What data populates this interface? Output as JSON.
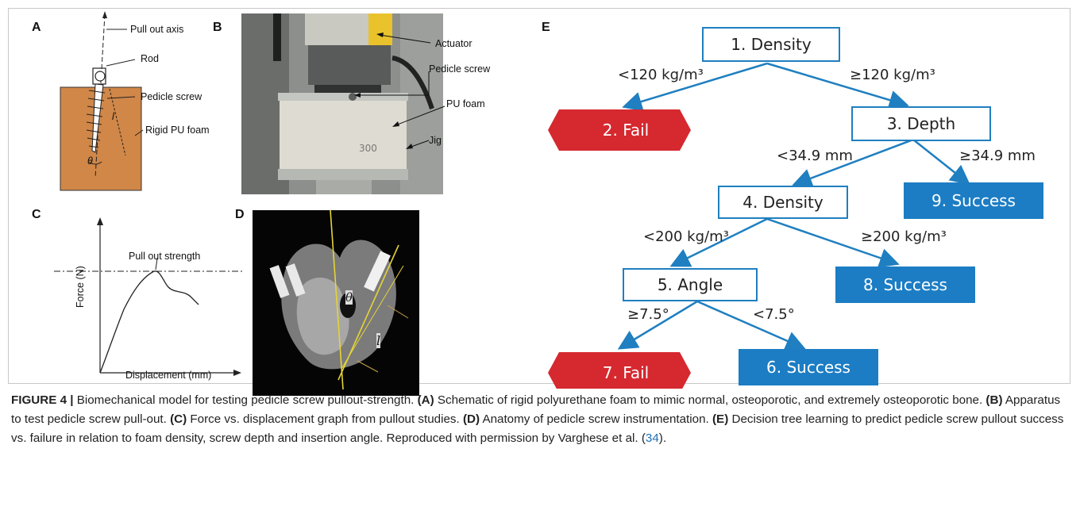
{
  "panels": {
    "a": {
      "letter": "A",
      "labels": {
        "pull_out_axis": "Pull out axis",
        "rod": "Rod",
        "pedicle_screw": "Pedicle screw",
        "rigid_pu_foam": "Rigid PU foam",
        "length_symbol": "l",
        "angle_symbol": "θ"
      },
      "colors": {
        "foam": "#d08748"
      }
    },
    "b": {
      "letter": "B",
      "labels": {
        "actuator": "Actuator",
        "pedicle_screw": "Pedicle screw",
        "pu_foam": "PU foam",
        "jig": "Jig",
        "foam_mark": "300"
      }
    },
    "c": {
      "letter": "C",
      "labels": {
        "pull_out_strength": "Pull out strength",
        "y_axis": "Force (N)",
        "x_axis": "Displacement (mm)"
      }
    },
    "d": {
      "letter": "D",
      "labels": {
        "angle_symbol": "θ",
        "length_symbol": "l"
      }
    },
    "e": {
      "letter": "E",
      "nodes": {
        "n1": "1. Density",
        "n2": "2. Fail",
        "n3": "3. Depth",
        "n4": "4. Density",
        "n5": "5. Angle",
        "n6": "6. Success",
        "n7": "7. Fail",
        "n8": "8. Success",
        "n9": "9. Success"
      },
      "edges": {
        "e1_2": "<120 kg/m³",
        "e1_3": "≥120 kg/m³",
        "e3_4": "<34.9 mm",
        "e3_9": "≥34.9 mm",
        "e4_5": "<200 kg/m³",
        "e4_8": "≥200 kg/m³",
        "e5_7": "≥7.5°",
        "e5_6": "<7.5°"
      },
      "colors": {
        "fail": "#d6282f",
        "success": "#1c7dc4",
        "edge": "#1f7fc0"
      }
    }
  },
  "caption": {
    "figure_label": "FIGURE 4 |",
    "title": " Biomechanical model for testing pedicle screw pullout-strength. ",
    "a_tag": "(A)",
    "a_text": " Schematic of rigid polyurethane foam to mimic normal, osteoporotic, and extremely osteoporotic bone. ",
    "b_tag": "(B)",
    "b_text": " Apparatus to test pedicle screw pull-out. ",
    "c_tag": "(C)",
    "c_text": " Force vs. displacement graph from pullout studies. ",
    "d_tag": "(D)",
    "d_text": " Anatomy of pedicle screw instrumentation. ",
    "e_tag": "(E)",
    "e_text": " Decision tree learning to predict pedicle screw pullout success vs. failure in relation to foam density, screw depth and insertion angle. Reproduced with permission by Varghese et al. (",
    "ref": "34",
    "end": ")."
  }
}
